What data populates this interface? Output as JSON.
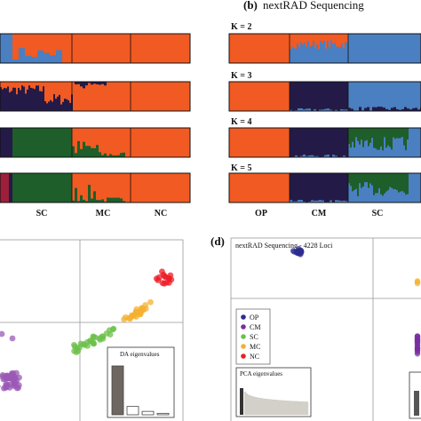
{
  "panel_b": {
    "letter": "(b)",
    "title": "nextRAD Sequencing"
  },
  "panel_d": {
    "letter": "(d)",
    "subtitle": "nextRAD Sequencing - 4228 Loci"
  },
  "k_labels": [
    "K = 2",
    "K = 3",
    "K = 4",
    "K = 5"
  ],
  "colors": {
    "OP": "#e0231c",
    "CM": "#6b3aa0",
    "SC": "#5aa02e",
    "MC": "#f5a623",
    "NC": "#ee1c25",
    "orange": "#f15a22",
    "blue": "#4a7fc1",
    "navy": "#241a47",
    "green": "#1e5e2a",
    "maroon": "#9c1f3b"
  },
  "chart_data": [
    {
      "type": "bar",
      "description_free": true,
      "panel": "a",
      "rows": [
        "K2",
        "K3",
        "K4",
        "K5"
      ],
      "group_labels": [
        "SC",
        "MC",
        "NC"
      ],
      "groups": [
        {
          "name": "SC",
          "K2": [
            "orange"
          ],
          "K3": [
            "navy",
            "orange"
          ],
          "K4": [
            "green",
            "orange"
          ],
          "K5": [
            "green",
            "orange"
          ]
        },
        {
          "name": "MC",
          "K2": [
            "orange"
          ],
          "K3": [
            "orange"
          ],
          "K4": [
            "orange"
          ],
          "K5": [
            "orange"
          ]
        },
        {
          "name": "NC",
          "K2": [
            "orange"
          ],
          "K3": [
            "orange"
          ],
          "K4": [
            "orange"
          ],
          "K5": [
            "orange"
          ]
        }
      ]
    },
    {
      "type": "bar",
      "panel": "b",
      "group_labels": [
        "OP",
        "CM",
        "SC"
      ],
      "groups": [
        {
          "name": "OP",
          "K2": "orange",
          "K3": "orange",
          "K4": "orange",
          "K5": "orange"
        },
        {
          "name": "CM",
          "K2": "orange",
          "K3": "navy",
          "K4": "navy",
          "K5": "navy"
        },
        {
          "name": "SC",
          "K2": "blue",
          "K3": "blue",
          "K4": "green",
          "K5": "green"
        }
      ]
    },
    {
      "type": "scatter",
      "panel": "c",
      "legend_title": "",
      "inset_label": "DA eigenvalues",
      "inset_values": [
        1.0,
        0.17,
        0.07,
        0.03
      ],
      "series": [
        {
          "name": "CM",
          "color": "#9b59b6",
          "center": [
            -1.3,
            -1.1
          ],
          "n": 45
        },
        {
          "name": "SC",
          "color": "#6cc04a",
          "center": [
            0.2,
            -0.35
          ],
          "n": 30
        },
        {
          "name": "MC",
          "color": "#f6b030",
          "center": [
            1.1,
            0.2
          ],
          "n": 25
        },
        {
          "name": "NC",
          "color": "#ee1c25",
          "center": [
            1.6,
            0.8
          ],
          "n": 15
        }
      ]
    },
    {
      "type": "scatter",
      "panel": "d",
      "inset_label": "PCA eigenvalues",
      "legend": [
        "OP",
        "CM",
        "SC",
        "MC",
        "NC"
      ],
      "series": [
        {
          "name": "OP",
          "color": "#2e2c8f",
          "center": [
            -1.4,
            1.6
          ],
          "n": 20
        },
        {
          "name": "CM",
          "color": "#7a2ea0",
          "center": [
            0.9,
            -1.55
          ],
          "n": 20
        },
        {
          "name": "MC",
          "color": "#f6b030",
          "center": [
            2.0,
            0.55
          ],
          "n": 3
        }
      ]
    }
  ],
  "panel_c_labels": [
    "SC",
    "MC",
    "NC"
  ],
  "panel_b_labels": [
    "OP",
    "CM",
    "SC"
  ],
  "legend_d": [
    "OP",
    "CM",
    "SC",
    "MC",
    "NC"
  ]
}
